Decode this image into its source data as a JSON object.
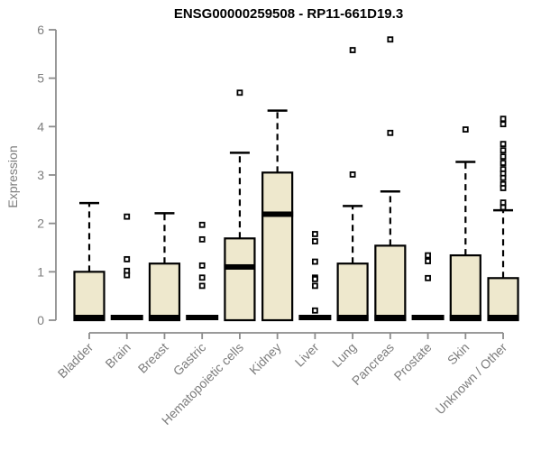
{
  "figure": {
    "title": "ENSG00000259508 - RP11-661D19.3",
    "y_axis_label": "Expression"
  },
  "colors": {
    "box_fill": "#EEE8CD",
    "box_border": "#000000",
    "median": "#000000",
    "whisker": "#000000",
    "outlier_stroke": "#000000",
    "outlier_fill": "#ffffff",
    "axis": "#8c8c8c",
    "tick_label": "#7d7d7d",
    "title_color": "#000000",
    "background": "#ffffff"
  },
  "chart_data": {
    "type": "boxplot",
    "title": "ENSG00000259508 - RP11-661D19.3",
    "xlabel": "",
    "ylabel": "Expression",
    "ylim": [
      0,
      6
    ],
    "yticks": [
      0,
      1,
      2,
      3,
      4,
      5,
      6
    ],
    "grid": false,
    "legend": "none",
    "categories": [
      "Bladder",
      "Brain",
      "Breast",
      "Gastric",
      "Hematopoietic cells",
      "Kidney",
      "Liver",
      "Lung",
      "Pancreas",
      "Prostate",
      "Skin",
      "Unknown / Other"
    ],
    "boxes": [
      {
        "category": "Bladder",
        "whisker_low": 0,
        "q1": 0,
        "median": 0,
        "q3": 1.0,
        "whisker_high": 2.42,
        "outliers": []
      },
      {
        "category": "Brain",
        "whisker_low": 0,
        "q1": 0,
        "median": 0,
        "q3": 0,
        "whisker_high": 0,
        "outliers": [
          2.14,
          1.26,
          1.02,
          0.93
        ]
      },
      {
        "category": "Breast",
        "whisker_low": 0,
        "q1": 0,
        "median": 0,
        "q3": 1.17,
        "whisker_high": 2.21,
        "outliers": []
      },
      {
        "category": "Gastric",
        "whisker_low": 0,
        "q1": 0,
        "median": 0,
        "q3": 0,
        "whisker_high": 0,
        "outliers": [
          1.97,
          1.67,
          1.13,
          0.88,
          0.71
        ]
      },
      {
        "category": "Hematopoietic cells",
        "whisker_low": 0,
        "q1": 0,
        "median": 1.1,
        "q3": 1.69,
        "whisker_high": 3.46,
        "outliers": [
          4.7
        ]
      },
      {
        "category": "Kidney",
        "whisker_low": 0,
        "q1": 0,
        "median": 2.19,
        "q3": 3.05,
        "whisker_high": 4.33,
        "outliers": []
      },
      {
        "category": "Liver",
        "whisker_low": 0,
        "q1": 0,
        "median": 0,
        "q3": 0,
        "whisker_high": 0,
        "outliers": [
          1.78,
          1.63,
          1.21,
          0.88,
          0.85,
          0.71,
          0.2
        ]
      },
      {
        "category": "Lung",
        "whisker_low": 0,
        "q1": 0,
        "median": 0,
        "q3": 1.17,
        "whisker_high": 2.36,
        "outliers": [
          5.58,
          3.01
        ]
      },
      {
        "category": "Pancreas",
        "whisker_low": 0,
        "q1": 0,
        "median": 0,
        "q3": 1.54,
        "whisker_high": 2.66,
        "outliers": [
          5.8,
          3.87
        ]
      },
      {
        "category": "Prostate",
        "whisker_low": 0,
        "q1": 0,
        "median": 0,
        "q3": 0,
        "whisker_high": 0,
        "outliers": [
          1.34,
          1.22,
          0.87
        ]
      },
      {
        "category": "Skin",
        "whisker_low": 0,
        "q1": 0,
        "median": 0,
        "q3": 1.34,
        "whisker_high": 3.27,
        "outliers": [
          3.94
        ]
      },
      {
        "category": "Unknown / Other",
        "whisker_low": 0,
        "q1": 0,
        "median": 0,
        "q3": 0.87,
        "whisker_high": 2.27,
        "outliers": [
          4.16,
          4.05,
          3.64,
          3.51,
          3.38,
          3.25,
          3.12,
          3.03,
          2.94,
          2.81,
          2.73,
          2.43,
          2.33
        ]
      }
    ]
  }
}
